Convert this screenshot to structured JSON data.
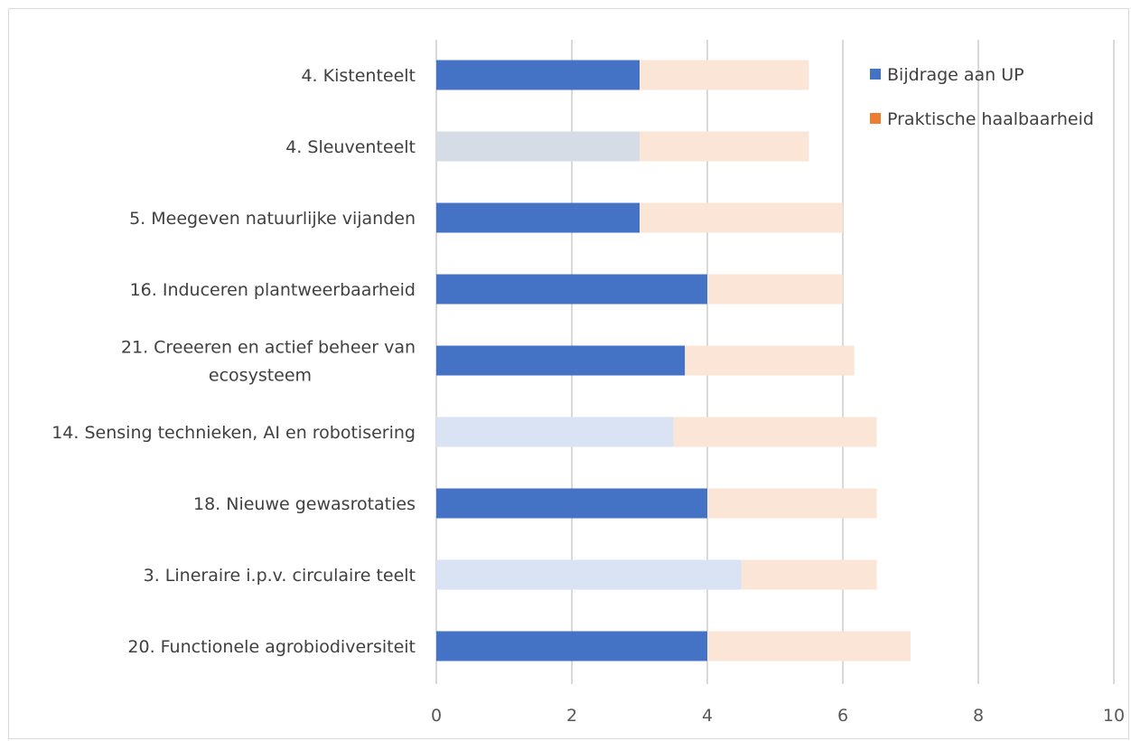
{
  "chart_data": {
    "type": "bar",
    "orientation": "horizontal",
    "stacked": true,
    "categories": [
      "4. Kistenteelt",
      "4. Sleuventeelt",
      "5. Meegeven natuurlijke vijanden",
      "16. Induceren plantweerbaarheid",
      "21. Creeeren en actief beheer van ecosysteem",
      "14. Sensing technieken, AI en robotisering",
      "18. Nieuwe gewasrotaties",
      "3. Lineraire i.p.v. circulaire teelt",
      "20. Functionele agrobiodiversiteit"
    ],
    "category_label_lines": [
      [
        "4. Kistenteelt"
      ],
      [
        "4. Sleuventeelt"
      ],
      [
        "5. Meegeven natuurlijke vijanden"
      ],
      [
        "16. Induceren plantweerbaarheid"
      ],
      [
        "21. Creeeren en actief beheer van",
        "ecosysteem"
      ],
      [
        "14. Sensing technieken, AI en robotisering"
      ],
      [
        "18. Nieuwe gewasrotaties"
      ],
      [
        "3. Lineraire i.p.v. circulaire teelt"
      ],
      [
        "20. Functionele agrobiodiversiteit"
      ]
    ],
    "series": [
      {
        "name": "Bijdrage aan UP",
        "color": "#4472c4",
        "values": [
          3,
          3,
          3,
          4,
          3.67,
          3.5,
          4,
          4.5,
          4
        ],
        "point_colors": [
          "#4472c4",
          "#d6dce5",
          "#4472c4",
          "#4472c4",
          "#4472c4",
          "#dae3f3",
          "#4472c4",
          "#dae3f3",
          "#4472c4"
        ]
      },
      {
        "name": "Praktische haalbaarheid",
        "color": "#ed7d31",
        "values": [
          2.5,
          2.5,
          3,
          2,
          2.5,
          3,
          2.5,
          2,
          3
        ],
        "point_colors": [
          "#fbe5d6",
          "#fbe5d6",
          "#fbe5d6",
          "#fbe5d6",
          "#fbe5d6",
          "#fbe5d6",
          "#fbe5d6",
          "#fbe5d6",
          "#fbe5d6"
        ]
      }
    ],
    "xlim": [
      0,
      10
    ],
    "xticks": [
      0,
      2,
      4,
      6,
      8,
      10
    ],
    "grid": true,
    "legend_position": "top-right",
    "title": "",
    "xlabel": "",
    "ylabel": ""
  }
}
